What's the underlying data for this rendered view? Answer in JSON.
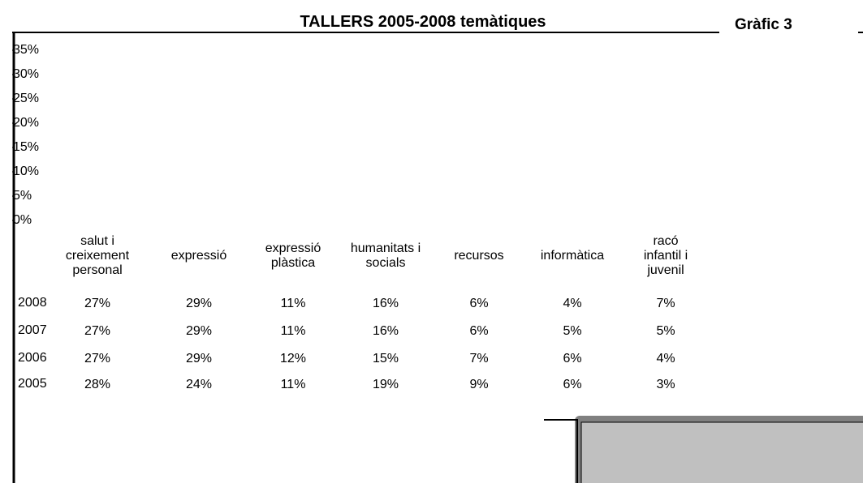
{
  "chart_data": {
    "type": "bar",
    "title": "TALLERS 2005-2008 temàtiques",
    "subtitle": "Gràfic 3",
    "categories": [
      "salut i creixement personal",
      "expressió",
      "expressió plàstica",
      "humanitats i socials",
      "recursos",
      "informàtica",
      "racó infantil i juvenil"
    ],
    "ylim": [
      0,
      35
    ],
    "yticks": [
      {
        "value": 0,
        "label": "0%"
      },
      {
        "value": 5,
        "label": "5%"
      },
      {
        "value": 10,
        "label": "10%"
      },
      {
        "value": 15,
        "label": "15%"
      },
      {
        "value": 20,
        "label": "20%"
      },
      {
        "value": 25,
        "label": "25%"
      },
      {
        "value": 30,
        "label": "30%"
      },
      {
        "value": 35,
        "label": "35%"
      }
    ],
    "series": [
      {
        "name": "2008",
        "values": [
          27,
          29,
          11,
          16,
          6,
          4,
          7
        ],
        "value_labels": [
          "27%",
          "29%",
          "11%",
          "16%",
          "6%",
          "4%",
          "7%"
        ]
      },
      {
        "name": "2007",
        "values": [
          27,
          29,
          11,
          16,
          6,
          5,
          5
        ],
        "value_labels": [
          "27%",
          "29%",
          "11%",
          "16%",
          "6%",
          "5%",
          "5%"
        ]
      },
      {
        "name": "2006",
        "values": [
          27,
          29,
          12,
          15,
          7,
          6,
          4
        ],
        "value_labels": [
          "27%",
          "29%",
          "12%",
          "15%",
          "7%",
          "6%",
          "4%"
        ]
      },
      {
        "name": "2005",
        "values": [
          28,
          24,
          11,
          19,
          9,
          6,
          3
        ],
        "value_labels": [
          "28%",
          "24%",
          "11%",
          "19%",
          "9%",
          "6%",
          "3%"
        ]
      }
    ]
  }
}
